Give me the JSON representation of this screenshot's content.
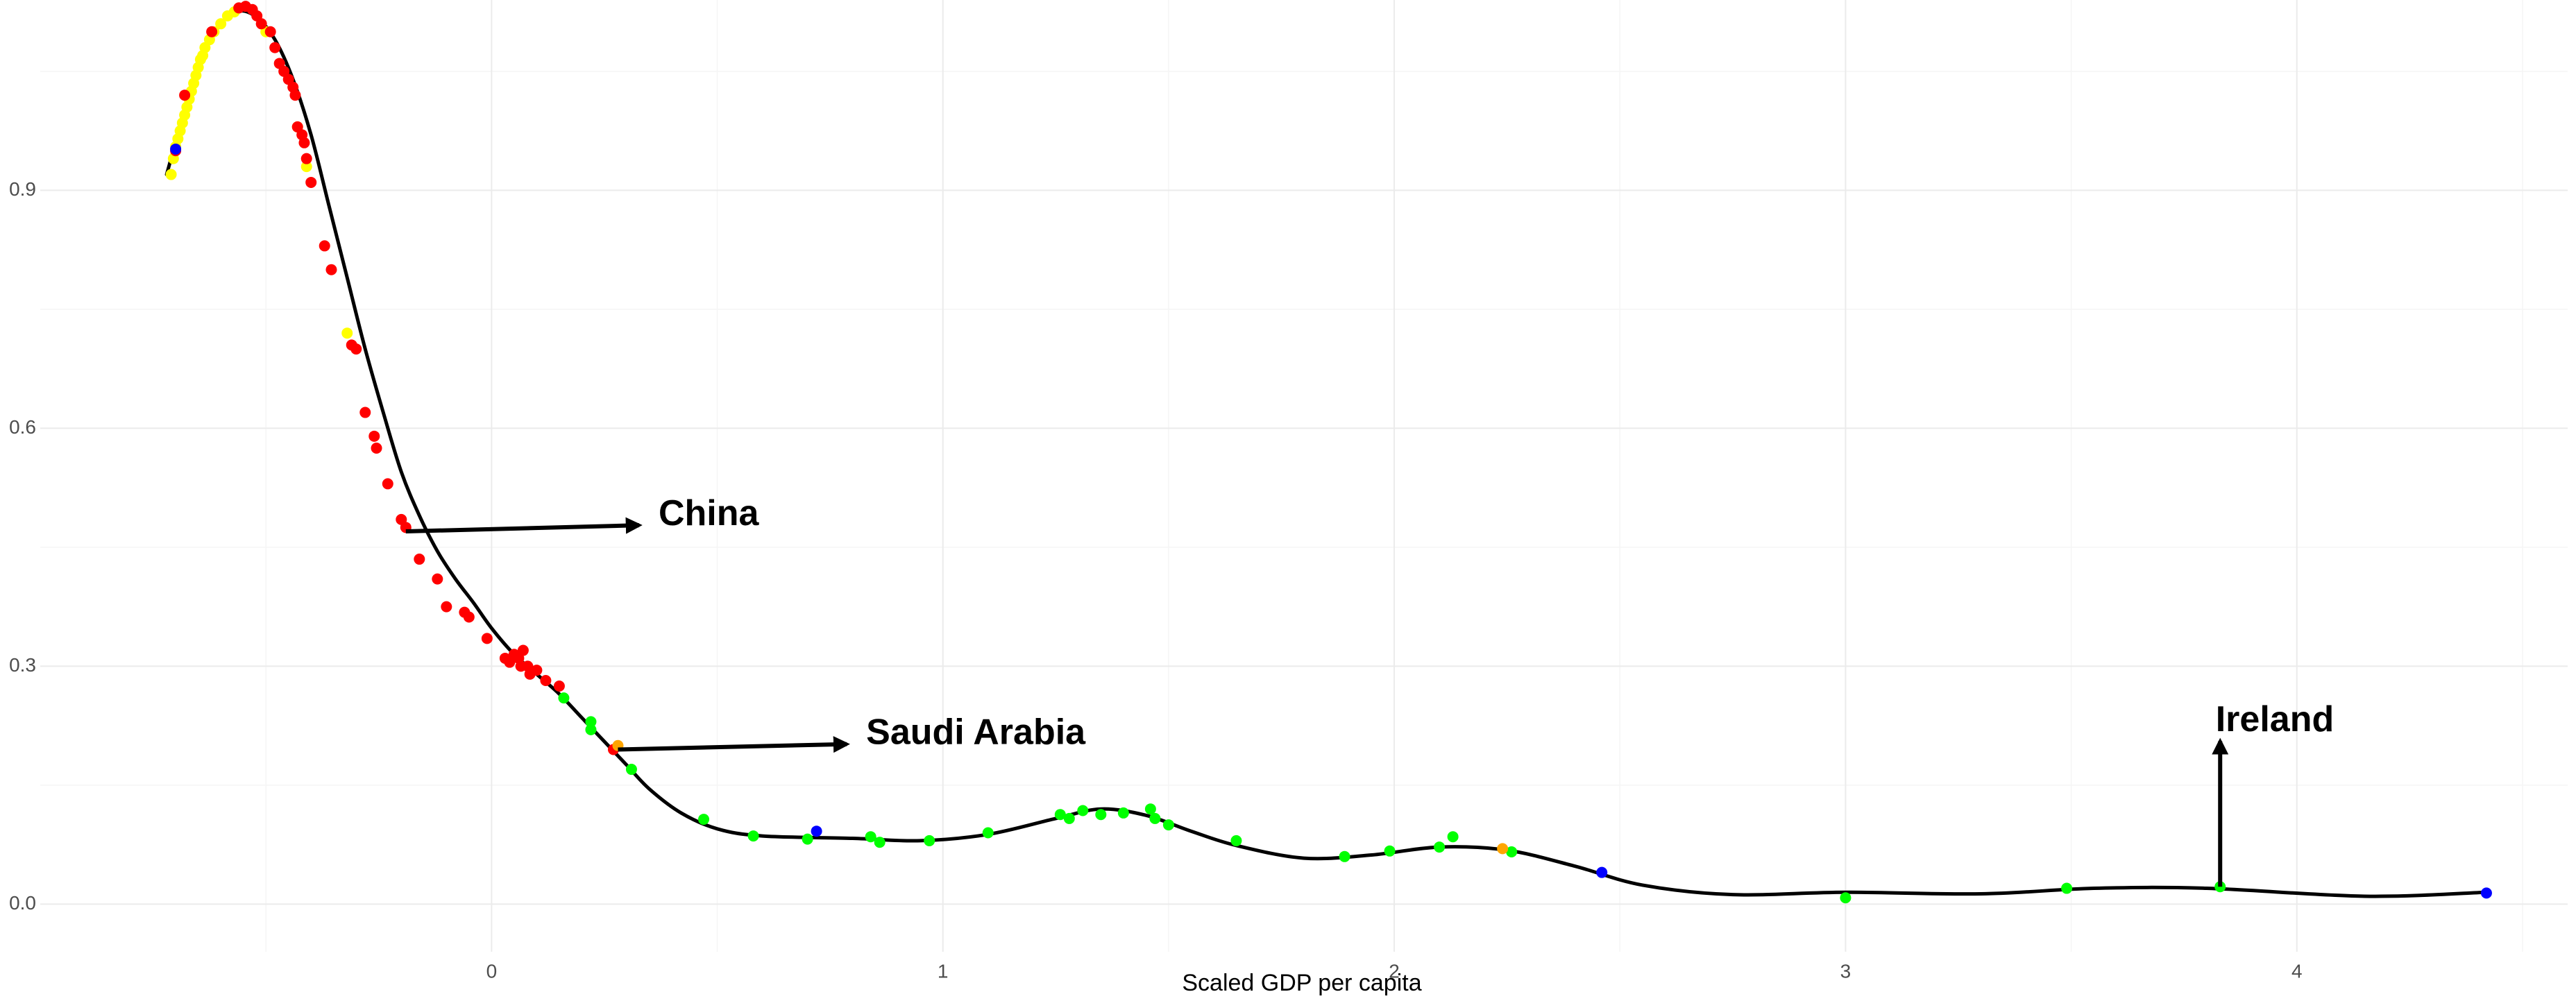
{
  "chart_data": {
    "type": "scatter",
    "title": "",
    "xlabel": "Scaled GDP per capita",
    "ylabel": "",
    "xlim": [
      -1.0,
      4.6
    ],
    "ylim": [
      -0.06,
      1.14
    ],
    "x_ticks": [
      0,
      1,
      2,
      3,
      4
    ],
    "y_ticks": [
      0.0,
      0.3,
      0.6,
      0.9
    ],
    "x_tick_labels": [
      "0",
      "1",
      "2",
      "3",
      "4"
    ],
    "y_tick_labels": [
      "0.0",
      "0.3",
      "0.6",
      "0.9"
    ],
    "grid": true,
    "legend": "none",
    "colors": {
      "yellow": "#ffff00",
      "red": "#ff0000",
      "green": "#00ff00",
      "blue": "#0000ff",
      "orange": "#ffa500",
      "curve": "#000000"
    },
    "smooth_curve": [
      [
        -0.72,
        0.92
      ],
      [
        -0.68,
        1.0
      ],
      [
        -0.64,
        1.07
      ],
      [
        -0.6,
        1.11
      ],
      [
        -0.56,
        1.126
      ],
      [
        -0.52,
        1.118
      ],
      [
        -0.48,
        1.09
      ],
      [
        -0.44,
        1.04
      ],
      [
        -0.4,
        0.97
      ],
      [
        -0.36,
        0.88
      ],
      [
        -0.32,
        0.79
      ],
      [
        -0.28,
        0.7
      ],
      [
        -0.24,
        0.62
      ],
      [
        -0.2,
        0.545
      ],
      [
        -0.16,
        0.49
      ],
      [
        -0.12,
        0.445
      ],
      [
        -0.08,
        0.41
      ],
      [
        -0.04,
        0.38
      ],
      [
        0.0,
        0.348
      ],
      [
        0.05,
        0.315
      ],
      [
        0.1,
        0.29
      ],
      [
        0.15,
        0.265
      ],
      [
        0.2,
        0.235
      ],
      [
        0.25,
        0.205
      ],
      [
        0.3,
        0.175
      ],
      [
        0.35,
        0.145
      ],
      [
        0.42,
        0.115
      ],
      [
        0.5,
        0.095
      ],
      [
        0.6,
        0.086
      ],
      [
        0.8,
        0.083
      ],
      [
        0.95,
        0.08
      ],
      [
        1.1,
        0.088
      ],
      [
        1.25,
        0.108
      ],
      [
        1.35,
        0.12
      ],
      [
        1.45,
        0.112
      ],
      [
        1.55,
        0.092
      ],
      [
        1.65,
        0.074
      ],
      [
        1.8,
        0.058
      ],
      [
        1.95,
        0.062
      ],
      [
        2.1,
        0.072
      ],
      [
        2.25,
        0.068
      ],
      [
        2.4,
        0.048
      ],
      [
        2.55,
        0.024
      ],
      [
        2.75,
        0.012
      ],
      [
        3.0,
        0.015
      ],
      [
        3.3,
        0.013
      ],
      [
        3.55,
        0.02
      ],
      [
        3.8,
        0.02
      ],
      [
        4.15,
        0.01
      ],
      [
        4.42,
        0.015
      ]
    ],
    "series": [
      {
        "color": "yellow",
        "points": [
          [
            -0.71,
            0.92
          ],
          [
            -0.705,
            0.94
          ],
          [
            -0.7,
            0.955
          ],
          [
            -0.695,
            0.965
          ],
          [
            -0.69,
            0.975
          ],
          [
            -0.685,
            0.985
          ],
          [
            -0.68,
            0.995
          ],
          [
            -0.675,
            1.005
          ],
          [
            -0.67,
            1.015
          ],
          [
            -0.665,
            1.025
          ],
          [
            -0.66,
            1.035
          ],
          [
            -0.655,
            1.045
          ],
          [
            -0.65,
            1.055
          ],
          [
            -0.645,
            1.065
          ],
          [
            -0.64,
            1.07
          ],
          [
            -0.635,
            1.08
          ],
          [
            -0.625,
            1.09
          ],
          [
            -0.615,
            1.1
          ],
          [
            -0.6,
            1.11
          ],
          [
            -0.585,
            1.12
          ],
          [
            -0.57,
            1.125
          ],
          [
            -0.5,
            1.1
          ],
          [
            -0.43,
            0.98
          ],
          [
            -0.41,
            0.93
          ],
          [
            -0.32,
            0.72
          ]
        ]
      },
      {
        "color": "red",
        "points": [
          [
            -0.7,
            0.95
          ],
          [
            -0.68,
            1.02
          ],
          [
            -0.62,
            1.1
          ],
          [
            -0.56,
            1.13
          ],
          [
            -0.545,
            1.132
          ],
          [
            -0.53,
            1.128
          ],
          [
            -0.52,
            1.12
          ],
          [
            -0.51,
            1.11
          ],
          [
            -0.49,
            1.1
          ],
          [
            -0.48,
            1.08
          ],
          [
            -0.47,
            1.06
          ],
          [
            -0.46,
            1.05
          ],
          [
            -0.45,
            1.04
          ],
          [
            -0.44,
            1.03
          ],
          [
            -0.435,
            1.02
          ],
          [
            -0.43,
            0.98
          ],
          [
            -0.42,
            0.97
          ],
          [
            -0.415,
            0.96
          ],
          [
            -0.41,
            0.94
          ],
          [
            -0.4,
            0.91
          ],
          [
            -0.37,
            0.83
          ],
          [
            -0.355,
            0.8
          ],
          [
            -0.31,
            0.705
          ],
          [
            -0.3,
            0.7
          ],
          [
            -0.28,
            0.62
          ],
          [
            -0.26,
            0.59
          ],
          [
            -0.255,
            0.575
          ],
          [
            -0.23,
            0.53
          ],
          [
            -0.2,
            0.485
          ],
          [
            -0.19,
            0.475
          ],
          [
            -0.16,
            0.435
          ],
          [
            -0.12,
            0.41
          ],
          [
            -0.1,
            0.375
          ],
          [
            -0.06,
            0.368
          ],
          [
            -0.05,
            0.362
          ],
          [
            -0.01,
            0.335
          ],
          [
            0.03,
            0.31
          ],
          [
            0.04,
            0.305
          ],
          [
            0.05,
            0.315
          ],
          [
            0.06,
            0.31
          ],
          [
            0.065,
            0.3
          ],
          [
            0.07,
            0.32
          ],
          [
            0.08,
            0.3
          ],
          [
            0.085,
            0.29
          ],
          [
            0.1,
            0.295
          ],
          [
            0.12,
            0.282
          ],
          [
            0.15,
            0.275
          ],
          [
            0.27,
            0.195
          ]
        ]
      },
      {
        "color": "green",
        "points": [
          [
            0.16,
            0.26
          ],
          [
            0.22,
            0.23
          ],
          [
            0.22,
            0.22
          ],
          [
            0.31,
            0.17
          ],
          [
            0.47,
            0.107
          ],
          [
            0.58,
            0.086
          ],
          [
            0.7,
            0.082
          ],
          [
            0.84,
            0.085
          ],
          [
            0.86,
            0.078
          ],
          [
            0.97,
            0.08
          ],
          [
            1.1,
            0.09
          ],
          [
            1.26,
            0.113
          ],
          [
            1.28,
            0.108
          ],
          [
            1.31,
            0.118
          ],
          [
            1.35,
            0.113
          ],
          [
            1.4,
            0.115
          ],
          [
            1.46,
            0.12
          ],
          [
            1.47,
            0.108
          ],
          [
            1.5,
            0.1
          ],
          [
            1.65,
            0.08
          ],
          [
            1.89,
            0.06
          ],
          [
            1.99,
            0.067
          ],
          [
            2.1,
            0.072
          ],
          [
            2.13,
            0.085
          ],
          [
            2.26,
            0.066
          ],
          [
            3.0,
            0.008
          ],
          [
            3.49,
            0.02
          ],
          [
            3.83,
            0.022
          ]
        ]
      },
      {
        "color": "blue",
        "points": [
          [
            -0.7,
            0.952
          ],
          [
            0.72,
            0.092
          ],
          [
            2.46,
            0.04
          ],
          [
            4.42,
            0.014
          ]
        ]
      },
      {
        "color": "orange",
        "points": [
          [
            0.28,
            0.2
          ],
          [
            2.24,
            0.07
          ]
        ]
      }
    ],
    "annotations": [
      {
        "label": "China",
        "point": [
          -0.19,
          0.47
        ],
        "text_pos": [
          0.37,
          0.49
        ]
      },
      {
        "label": "Saudi Arabia",
        "point": [
          0.28,
          0.195
        ],
        "text_pos": [
          0.83,
          0.214
        ]
      },
      {
        "label": "Ireland",
        "point": [
          3.83,
          0.022
        ],
        "text_pos": [
          3.82,
          0.23
        ]
      }
    ]
  }
}
